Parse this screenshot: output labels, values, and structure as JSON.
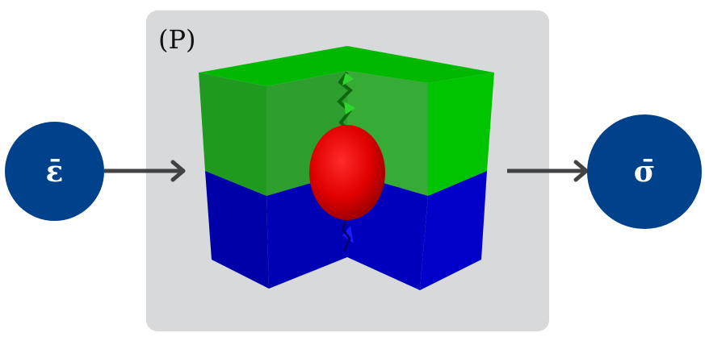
{
  "panel": {
    "label": "(P)"
  },
  "input_node": {
    "symbol": "ε̄"
  },
  "output_node": {
    "symbol": "σ̄"
  },
  "colors": {
    "node_fill": "#00418c",
    "panel_fill": "#d8d9db",
    "arrow": "#404244",
    "matrix_top": "#00c400",
    "matrix_bottom": "#0000c8",
    "inclusion": "#e00000"
  }
}
